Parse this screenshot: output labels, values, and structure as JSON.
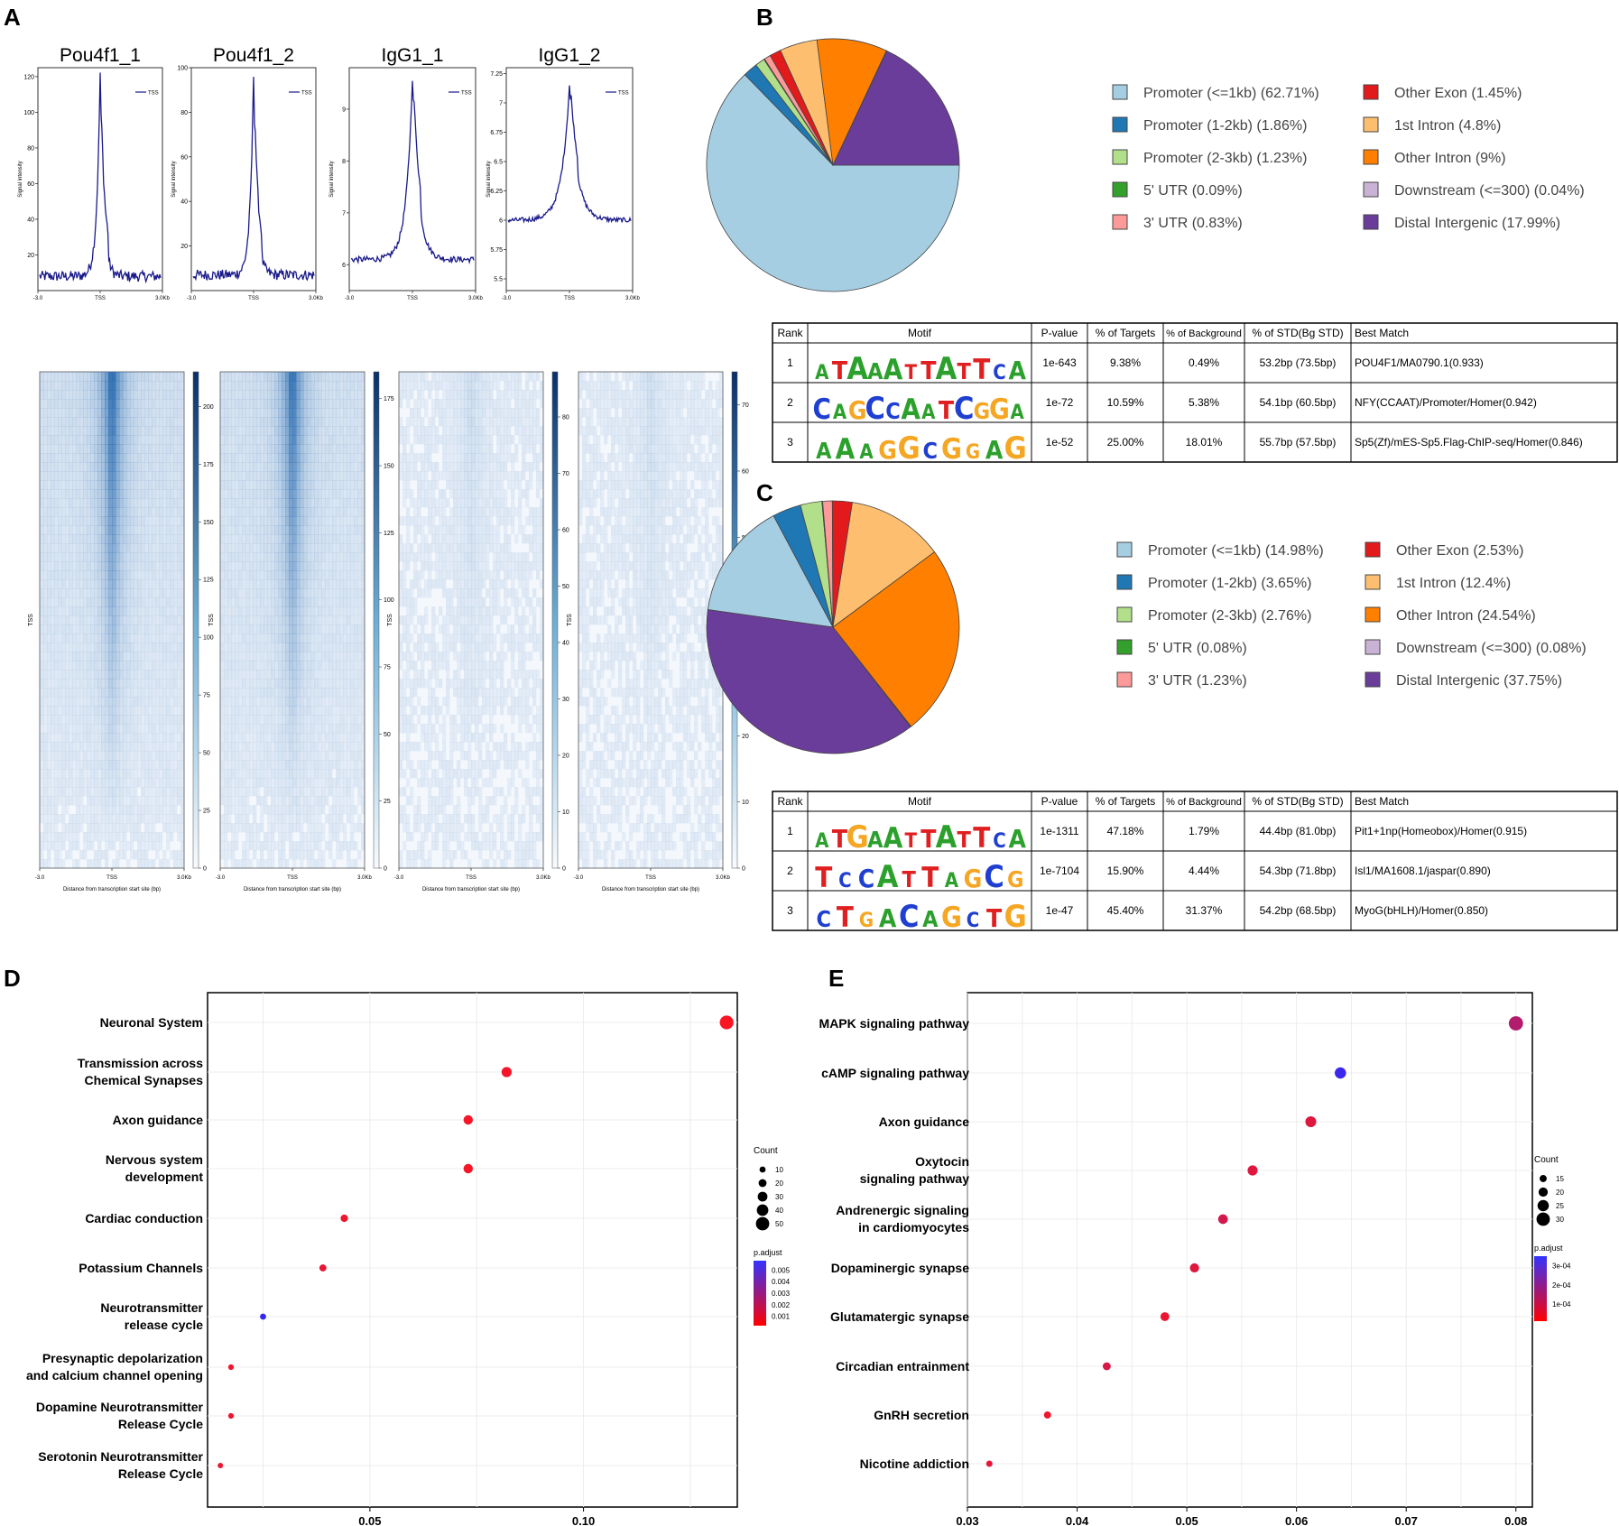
{
  "panel_letters": {
    "a": "A",
    "b": "B",
    "c": "C",
    "d": "D",
    "e": "E"
  },
  "chart_data": [
    {
      "panel": "A",
      "type": "line",
      "subtype": "tss-profiles",
      "tick_labels": {
        "left": "-3.0",
        "center": "TSS",
        "right": "3.0Kb"
      },
      "ylabel": "Signal intensity",
      "legend_label": "TSS",
      "profiles": [
        {
          "title": "Pou4f1_1",
          "ylim": [
            0,
            125
          ],
          "yticks": [
            20,
            40,
            60,
            80,
            100,
            120
          ],
          "baseline": 8,
          "peak": 122,
          "noise": 0.4,
          "width": 0.09
        },
        {
          "title": "Pou4f1_2",
          "ylim": [
            0,
            100
          ],
          "yticks": [
            20,
            40,
            60,
            80,
            100
          ],
          "baseline": 7,
          "peak": 97,
          "noise": 0.4,
          "width": 0.09
        },
        {
          "title": "IgG1_1",
          "ylim": [
            5.5,
            9.8
          ],
          "yticks": [
            6,
            7,
            8,
            9
          ],
          "baseline": 6.1,
          "peak": 9.6,
          "noise": 0.22,
          "width": 0.16
        },
        {
          "title": "IgG1_2",
          "ylim": [
            5.4,
            7.3
          ],
          "yticks": [
            5.5,
            5.75,
            6.0,
            6.25,
            6.5,
            6.75,
            7.0,
            7.25
          ],
          "baseline": 6.0,
          "peak": 7.15,
          "noise": 0.18,
          "width": 0.2
        }
      ]
    },
    {
      "panel": "A",
      "type": "heatmap",
      "ylabel": "TSS",
      "xlabel": "Distance from transcription start site (bp)",
      "tick_labels": {
        "left": "-3.0",
        "center": "TSS",
        "right": "3.0Kb"
      },
      "maps": [
        {
          "name": "Pou4f1_1",
          "colorbar_max": 215,
          "colorbar_ticks": [
            0,
            25,
            50,
            75,
            100,
            125,
            150,
            175,
            200
          ],
          "intensity": 1.0
        },
        {
          "name": "Pou4f1_2",
          "colorbar_max": 185,
          "colorbar_ticks": [
            0,
            25,
            50,
            75,
            100,
            125,
            150,
            175
          ],
          "intensity": 0.95
        },
        {
          "name": "IgG1_1",
          "colorbar_max": 88,
          "colorbar_ticks": [
            0,
            10,
            20,
            30,
            40,
            50,
            60,
            70,
            80
          ],
          "intensity": 0.12
        },
        {
          "name": "IgG1_2",
          "colorbar_max": 75,
          "colorbar_ticks": [
            0,
            10,
            20,
            30,
            40,
            50,
            60,
            70
          ],
          "intensity": 0.1
        }
      ]
    },
    {
      "panel": "B",
      "type": "pie",
      "slices": [
        {
          "label": "Promoter (<=1kb) (62.71%)",
          "value": 62.71,
          "color": "#a6cee3"
        },
        {
          "label": "Promoter (1-2kb) (1.86%)",
          "value": 1.86,
          "color": "#1f78b4"
        },
        {
          "label": "Promoter (2-3kb) (1.23%)",
          "value": 1.23,
          "color": "#b2df8a"
        },
        {
          "label": "5' UTR (0.09%)",
          "value": 0.09,
          "color": "#33a02c"
        },
        {
          "label": "3' UTR (0.83%)",
          "value": 0.83,
          "color": "#fb9a99"
        },
        {
          "label": "Other Exon (1.45%)",
          "value": 1.45,
          "color": "#e31a1c"
        },
        {
          "label": "1st Intron (4.8%)",
          "value": 4.8,
          "color": "#fdbf6f"
        },
        {
          "label": "Other Intron (9%)",
          "value": 9.0,
          "color": "#ff7f00"
        },
        {
          "label": "Downstream (<=300) (0.04%)",
          "value": 0.04,
          "color": "#cab2d6"
        },
        {
          "label": "Distal Intergenic (17.99%)",
          "value": 17.99,
          "color": "#6a3d9a"
        }
      ]
    },
    {
      "panel": "B",
      "type": "table",
      "columns": [
        "Rank",
        "Motif",
        "P-value",
        "% of Targets",
        "% of Background",
        "% of STD(Bg STD)",
        "Best Match"
      ],
      "rows": [
        {
          "rank": "1",
          "motif": "ATAAATTATTCA",
          "pvalue": "1e-643",
          "targets": "9.38%",
          "background": "0.49%",
          "std": "53.2bp (73.5bp)",
          "match": "POU4F1/MA0790.1(0.933)"
        },
        {
          "rank": "2",
          "motif": "CAGCCAATCGGA",
          "pvalue": "1e-72",
          "targets": "10.59%",
          "background": "5.38%",
          "std": "54.1bp (60.5bp)",
          "match": "NFY(CCAAT)/Promoter/Homer(0.942)"
        },
        {
          "rank": "3",
          "motif": "AAAGGCGGAG",
          "pvalue": "1e-52",
          "targets": "25.00%",
          "background": "18.01%",
          "std": "55.7bp (57.5bp)",
          "match": "Sp5(Zf)/mES-Sp5.Flag-ChIP-seq/Homer(0.846)"
        }
      ]
    },
    {
      "panel": "C",
      "type": "pie",
      "slices": [
        {
          "label": "Promoter (<=1kb) (14.98%)",
          "value": 14.98,
          "color": "#a6cee3"
        },
        {
          "label": "Promoter (1-2kb) (3.65%)",
          "value": 3.65,
          "color": "#1f78b4"
        },
        {
          "label": "Promoter (2-3kb) (2.76%)",
          "value": 2.76,
          "color": "#b2df8a"
        },
        {
          "label": "5' UTR (0.08%)",
          "value": 0.08,
          "color": "#33a02c"
        },
        {
          "label": "3' UTR (1.23%)",
          "value": 1.23,
          "color": "#fb9a99"
        },
        {
          "label": "Other Exon (2.53%)",
          "value": 2.53,
          "color": "#e31a1c"
        },
        {
          "label": "1st Intron (12.4%)",
          "value": 12.4,
          "color": "#fdbf6f"
        },
        {
          "label": "Other Intron (24.54%)",
          "value": 24.54,
          "color": "#ff7f00"
        },
        {
          "label": "Downstream (<=300) (0.08%)",
          "value": 0.08,
          "color": "#cab2d6"
        },
        {
          "label": "Distal Intergenic (37.75%)",
          "value": 37.75,
          "color": "#6a3d9a"
        }
      ]
    },
    {
      "panel": "C",
      "type": "table",
      "columns": [
        "Rank",
        "Motif",
        "P-value",
        "% of Targets",
        "% of Background",
        "% of STD(Bg STD)",
        "Best Match"
      ],
      "rows": [
        {
          "rank": "1",
          "motif": "ATGAATTATTCA",
          "pvalue": "1e-1311",
          "targets": "47.18%",
          "background": "1.79%",
          "std": "44.4bp (81.0bp)",
          "match": "Pit1+1np(Homeobox)/Homer(0.915)"
        },
        {
          "rank": "2",
          "motif": "TCCATTAGCG",
          "pvalue": "1e-7104",
          "targets": "15.90%",
          "background": "4.44%",
          "std": "54.3bp (71.8bp)",
          "match": "Isl1/MA1608.1/jaspar(0.890)"
        },
        {
          "rank": "3",
          "motif": "CTGACAGCTG",
          "pvalue": "1e-47",
          "targets": "45.40%",
          "background": "31.37%",
          "std": "54.2bp (68.5bp)",
          "match": "MyoG(bHLH)/Homer(0.850)"
        }
      ]
    },
    {
      "panel": "D",
      "type": "scatter",
      "subtype": "dotplot",
      "xlabel": "GeneRatio",
      "xlim": [
        0.012,
        0.136
      ],
      "xticks": [
        0.05,
        0.1
      ],
      "xtick_labels": [
        "0.05",
        "0.10"
      ],
      "terms": [
        {
          "label": "Neuronal System",
          "x": 0.1335,
          "count": 52,
          "padj": 0.0003
        },
        {
          "label": "Transmission across Chemical Synapses",
          "x": 0.082,
          "count": 32,
          "padj": 0.0005
        },
        {
          "label": "Axon guidance",
          "x": 0.073,
          "count": 28,
          "padj": 0.0004
        },
        {
          "label": "Nervous system development",
          "x": 0.073,
          "count": 28,
          "padj": 0.0004
        },
        {
          "label": "Cardiac conduction",
          "x": 0.044,
          "count": 17,
          "padj": 0.0006
        },
        {
          "label": "Potassium Channels",
          "x": 0.039,
          "count": 15,
          "padj": 0.0008
        },
        {
          "label": "Neurotransmitter release cycle",
          "x": 0.025,
          "count": 10,
          "padj": 0.0055
        },
        {
          "label": "Presynaptic depolarization and calcium channel opening",
          "x": 0.0175,
          "count": 7,
          "padj": 0.0006
        },
        {
          "label": "Dopamine Neurotransmitter Release Cycle",
          "x": 0.0175,
          "count": 7,
          "padj": 0.0006
        },
        {
          "label": "Serotonin Neurotransmitter Release Cycle",
          "x": 0.015,
          "count": 6,
          "padj": 0.0007
        }
      ],
      "size_legend_title": "Count",
      "size_legend": [
        10,
        20,
        30,
        40,
        50
      ],
      "color_legend_title": "p.adjust",
      "color_legend_ticks": [
        0.001,
        0.002,
        0.003,
        0.004,
        0.005
      ],
      "color_legend_tick_labels": [
        "0.001",
        "0.002",
        "0.003",
        "0.004",
        "0.005"
      ],
      "color_range": [
        0.0002,
        0.0058
      ]
    },
    {
      "panel": "E",
      "type": "scatter",
      "subtype": "dotplot",
      "xlabel": "GeneRatio",
      "xlim": [
        0.03,
        0.0815
      ],
      "xticks": [
        0.03,
        0.04,
        0.05,
        0.06,
        0.07,
        0.08
      ],
      "xtick_labels": [
        "0.03",
        "0.04",
        "0.05",
        "0.06",
        "0.07",
        "0.08"
      ],
      "terms": [
        {
          "label": "MAPK signaling pathway",
          "x": 0.08,
          "count": 32,
          "padj": 0.00013
        },
        {
          "label": "cAMP signaling pathway",
          "x": 0.064,
          "count": 25,
          "padj": 0.00032
        },
        {
          "label": "Axon guidance",
          "x": 0.0613,
          "count": 24,
          "padj": 6e-05
        },
        {
          "label": "Oxytocin signaling pathway",
          "x": 0.056,
          "count": 22,
          "padj": 6e-05
        },
        {
          "label": "Andrenergic signaling in cardiomyocytes",
          "x": 0.0533,
          "count": 21,
          "padj": 8e-05
        },
        {
          "label": "Dopaminergic synapse",
          "x": 0.0507,
          "count": 20,
          "padj": 6e-05
        },
        {
          "label": "Glutamatergic synapse",
          "x": 0.048,
          "count": 19,
          "padj": 4e-05
        },
        {
          "label": "Circadian entrainment",
          "x": 0.0427,
          "count": 17,
          "padj": 7e-05
        },
        {
          "label": "GnRH secretion",
          "x": 0.0373,
          "count": 15,
          "padj": 3e-05
        },
        {
          "label": "Nicotine addiction",
          "x": 0.032,
          "count": 13,
          "padj": 5e-05
        }
      ],
      "size_legend_title": "Count",
      "size_legend": [
        15,
        20,
        25,
        30
      ],
      "color_legend_title": "p.adjust",
      "color_legend_ticks": [
        0.0001,
        0.0002,
        0.0003
      ],
      "color_legend_tick_labels": [
        "1e-04",
        "2e-04",
        "3e-04"
      ],
      "color_range": [
        1e-05,
        0.00035
      ]
    }
  ]
}
